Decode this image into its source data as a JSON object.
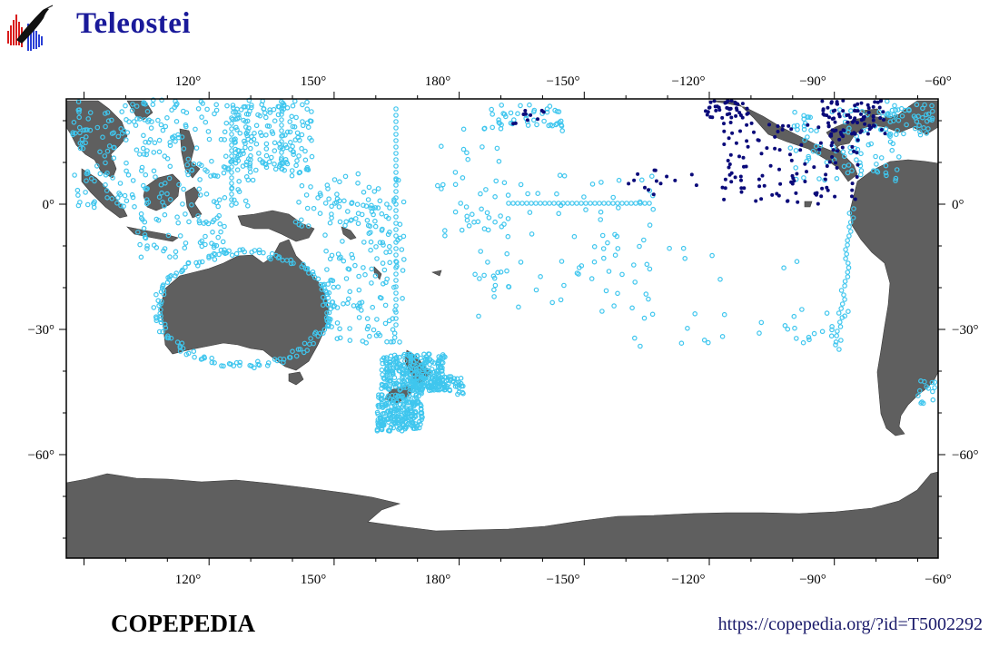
{
  "header": {
    "title": "Teleostei",
    "logo_icon": "copepedia-fish-histogram-logo"
  },
  "map": {
    "projection": "plate-carree",
    "lon_range": [
      97,
      300
    ],
    "lat_range": [
      -85,
      24
    ],
    "top_lon_labels": [
      "120°",
      "150°",
      "180°",
      "−150°",
      "−120°",
      "−90°",
      "−60°"
    ],
    "bottom_lon_labels": [
      "120°",
      "150°",
      "180°",
      "−150°",
      "−120°",
      "−90°",
      "−60°"
    ],
    "left_lat_labels": [
      "0°",
      "−30°",
      "−60°"
    ],
    "right_lat_labels": [
      "0°",
      "−30°",
      "−60°"
    ],
    "colors": {
      "land": "#5f5f5f",
      "ocean": "#ffffff",
      "record_light": "#3fc6ee",
      "record_dark": "#0a0a7a"
    }
  },
  "footer": {
    "brand": "COPEPEDIA",
    "url": "https://copepedia.org/?id=T5002292"
  }
}
